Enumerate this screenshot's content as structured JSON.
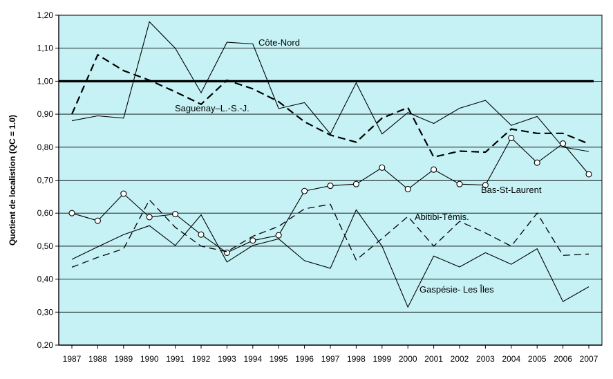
{
  "chart_data": {
    "type": "line",
    "title": "",
    "xlabel": "",
    "ylabel": "Quotient de localistion (QC = 1.0)",
    "ylim": [
      0.2,
      1.2
    ],
    "y_ticks": [
      "0,20",
      "0,30",
      "0,40",
      "0,50",
      "0,60",
      "0,70",
      "0,80",
      "0,90",
      "1,00",
      "1,10",
      "1,20"
    ],
    "categories": [
      "1987",
      "1988",
      "1989",
      "1990",
      "1991",
      "1992",
      "1993",
      "1994",
      "1995",
      "1996",
      "1997",
      "1998",
      "1999",
      "2000",
      "2001",
      "2002",
      "2003",
      "2004",
      "2005",
      "2006",
      "2007"
    ],
    "grid": true,
    "background_color": "#c6f2f5",
    "reference_line": {
      "value": 1.0
    },
    "series": [
      {
        "name": "Côte-Nord",
        "style": "solid",
        "values": [
          0.88,
          0.895,
          0.888,
          1.18,
          1.1,
          0.965,
          1.118,
          1.113,
          0.917,
          0.935,
          0.84,
          0.995,
          0.84,
          0.905,
          0.872,
          0.918,
          0.942,
          0.866,
          0.893,
          0.8,
          0.787
        ]
      },
      {
        "name": "Saguenay–L.-S.-J.",
        "style": "dashed-thick",
        "values": [
          0.9,
          1.08,
          1.032,
          1.003,
          0.968,
          0.93,
          1.003,
          0.977,
          0.938,
          0.877,
          0.837,
          0.815,
          0.888,
          0.92,
          0.77,
          0.788,
          0.785,
          0.855,
          0.842,
          0.842,
          0.81
        ]
      },
      {
        "name": "Bas-St-Laurent",
        "style": "circle-markers",
        "values": [
          0.6,
          0.577,
          0.659,
          0.588,
          0.597,
          0.535,
          0.48,
          0.517,
          0.533,
          0.667,
          0.683,
          0.688,
          0.738,
          0.673,
          0.732,
          0.688,
          0.685,
          0.828,
          0.753,
          0.811,
          0.718
        ]
      },
      {
        "name": "Abitibi-Témis.",
        "style": "dashed",
        "values": [
          0.436,
          0.466,
          0.492,
          0.64,
          0.557,
          0.5,
          0.483,
          0.53,
          0.56,
          0.613,
          0.627,
          0.458,
          0.523,
          0.59,
          0.5,
          0.575,
          0.54,
          0.5,
          0.6,
          0.472,
          0.476
        ]
      },
      {
        "name": "Gaspésie- Les Îles",
        "style": "solid",
        "values": [
          0.46,
          0.498,
          0.535,
          0.562,
          0.502,
          0.595,
          0.452,
          0.502,
          0.522,
          0.456,
          0.433,
          0.61,
          0.5,
          0.315,
          0.47,
          0.437,
          0.48,
          0.445,
          0.492,
          0.332,
          0.377
        ]
      }
    ]
  }
}
